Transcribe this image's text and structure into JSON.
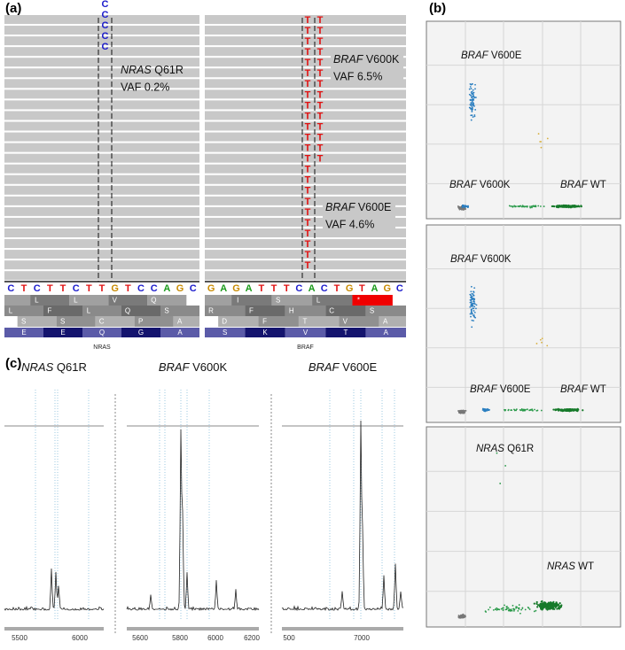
{
  "panel_labels": {
    "a": "(a)",
    "b": "(b)",
    "c": "(c)"
  },
  "igv": {
    "nras": {
      "annotation": {
        "gene": "NRAS",
        "variant": "Q61R",
        "vaf": "VAF 0.2%"
      },
      "read_bases": [
        "C",
        "C",
        "C",
        "C",
        "C"
      ],
      "sequence": [
        "C",
        "T",
        "C",
        "T",
        "T",
        "C",
        "T",
        "T",
        "G",
        "T",
        "C",
        "C",
        "A",
        "G",
        "C"
      ],
      "aa_rows": [
        [
          "T",
          "L",
          "L",
          "V",
          "Q"
        ],
        [
          "L",
          "F",
          "L",
          "Q",
          "S"
        ],
        [
          "S",
          "S",
          "C",
          "P",
          "A"
        ]
      ],
      "protein": [
        "E",
        "E",
        "Q",
        "G",
        "A"
      ],
      "gene_label": "NRAS"
    },
    "braf": {
      "annotations": [
        {
          "gene": "BRAF",
          "variant": "V600K",
          "vaf": "VAF 6.5%"
        },
        {
          "gene": "BRAF",
          "variant": "V600E",
          "vaf": "VAF 4.6%"
        }
      ],
      "read_bases_1": [
        "T",
        "T",
        "T",
        "T",
        "T",
        "T",
        "T",
        "T",
        "T",
        "T",
        "T",
        "T",
        "T",
        "T",
        "T",
        "T",
        "T",
        "T",
        "T",
        "T",
        "T",
        "T",
        "T",
        "T"
      ],
      "read_bases_2": [
        "T",
        "T",
        "T",
        "T",
        "T",
        "T",
        "T",
        "T",
        "T",
        "T",
        "T",
        "T",
        "T",
        "T"
      ],
      "sequence": [
        "G",
        "A",
        "G",
        "A",
        "T",
        "T",
        "T",
        "C",
        "A",
        "C",
        "T",
        "G",
        "T",
        "A",
        "G",
        "C"
      ],
      "aa_rows": [
        [
          "E",
          "I",
          "S",
          "L",
          "*"
        ],
        [
          "R",
          "F",
          "H",
          "C",
          "S"
        ],
        [
          "D",
          "F",
          "T",
          "V",
          "A"
        ]
      ],
      "protein": [
        "S",
        "K",
        "V",
        "T",
        "A"
      ],
      "gene_label": "BRAF"
    }
  },
  "ddpcr": [
    {
      "labels": [
        {
          "gene": "BRAF",
          "variant": "V600E"
        },
        {
          "gene": "BRAF",
          "variant": "V600K"
        },
        {
          "gene": "BRAF",
          "variant": "WT"
        }
      ]
    },
    {
      "labels": [
        {
          "gene": "BRAF",
          "variant": "V600K"
        },
        {
          "gene": "BRAF",
          "variant": "V600E"
        },
        {
          "gene": "BRAF",
          "variant": "WT"
        }
      ]
    },
    {
      "labels": [
        {
          "gene": "NRAS",
          "variant": "Q61R"
        },
        {
          "gene": "NRAS",
          "variant": "WT"
        }
      ]
    }
  ],
  "spectra": [
    {
      "title": {
        "gene": "NRAS",
        "variant": "Q61R"
      },
      "xtick_labels": [
        5500,
        6000
      ]
    },
    {
      "title": {
        "gene": "BRAF",
        "variant": "V600K"
      },
      "xtick_labels": [
        5600,
        5800,
        6000,
        6200
      ]
    },
    {
      "title": {
        "gene": "BRAF",
        "variant": "V600E"
      },
      "xtick_labels": [
        500,
        7000
      ]
    }
  ]
}
